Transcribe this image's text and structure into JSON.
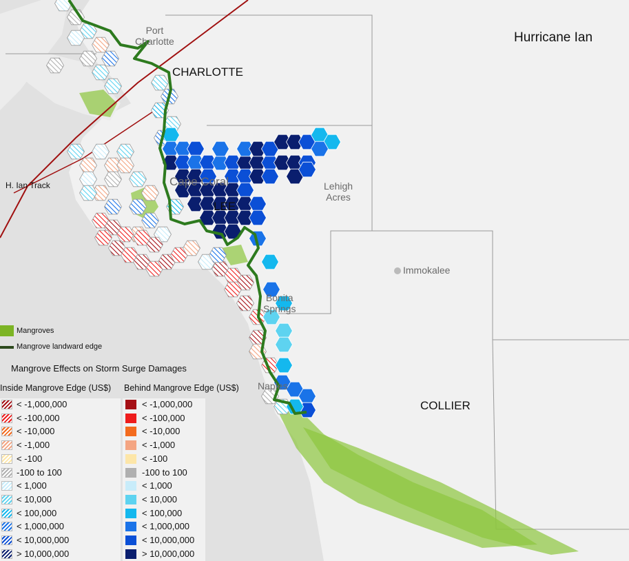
{
  "title": "Hurricane Ian",
  "track_label": "H. Ian Track",
  "counties": [
    "CHARLOTTE",
    "LEE",
    "COLLIER"
  ],
  "cities": {
    "port_charlotte": [
      "Port",
      "Charlotte"
    ],
    "cape_coral": "Cape Coral",
    "lehigh_acres": [
      "Lehigh",
      "Acres"
    ],
    "immokalee": "Immokalee",
    "bonita_springs": [
      "Bonita",
      "Springs"
    ],
    "naples": "Naples"
  },
  "legend": {
    "mangroves": "Mangroves",
    "landward_edge": "Mangrove landward edge",
    "heading": "Mangrove Effects on Storm Surge Damages",
    "inside_title": "Inside Mangrove Edge (US$)",
    "behind_title": "Behind Mangrove Edge (US$)",
    "inside_classes": [
      "< -1,000,000",
      "< -100,000",
      "< -10,000",
      "< -1,000",
      "< -100",
      "-100 to 100",
      "< 1,000",
      "< 10,000",
      "< 100,000",
      "< 1,000,000",
      "< 10,000,000",
      "> 10,000,000"
    ],
    "behind_classes": [
      "< -1,000,000",
      "< -100,000",
      "< -10,000",
      "< -1,000",
      "< -100",
      "-100 to 100",
      "< 1,000",
      "< 10,000",
      "< 100,000",
      "< 1,000,000",
      "< 10,000,000",
      "> 10,000,000"
    ]
  },
  "colors": {
    "classes": [
      "#a50f15",
      "#ee1c1c",
      "#f36b1e",
      "#f4a582",
      "#fde6a8",
      "#b0b0b0",
      "#c8ecfa",
      "#5ed3f0",
      "#14b8ee",
      "#1a73e8",
      "#0b4fd6",
      "#0a1e6e"
    ],
    "mangrove_green": "#8dc63f",
    "edge_green": "#2d7a1e",
    "track_red": "#a01010"
  }
}
